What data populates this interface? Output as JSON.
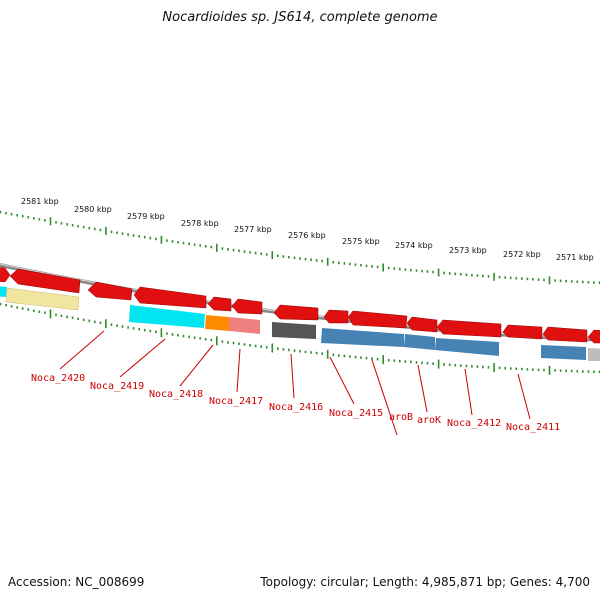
{
  "title": "Nocardioides sp. JS614, complete genome",
  "footer": {
    "accession": "Accession: NC_008699",
    "summary": "Topology: circular; Length: 4,985,871 bp; Genes: 4,700"
  },
  "kbp_labels": [
    "2581 kbp",
    "2580 kbp",
    "2579 kbp",
    "2578 kbp",
    "2577 kbp",
    "2576 kbp",
    "2575 kbp",
    "2574 kbp",
    "2573 kbp",
    "2572 kbp",
    "2571 kbp"
  ],
  "gene_labels": [
    "Noca_2420",
    "Noca_2419",
    "Noca_2418",
    "Noca_2417",
    "Noca_2416",
    "Noca_2415",
    "aroB",
    "aroK",
    "Noca_2412",
    "Noca_2411"
  ],
  "colors": {
    "cds_forward": "#e01010",
    "cyan": "#00e5f0",
    "khaki": "#f0e6a0",
    "orange": "#ff8c00",
    "pink": "#f08080",
    "dark_gray": "#555555",
    "steel_blue": "#4682b4",
    "light_gray": "#bdbdbd",
    "backbone": "#8a8a8a",
    "tick_green": "#2e8b2e",
    "label_red": "#cc0000"
  }
}
